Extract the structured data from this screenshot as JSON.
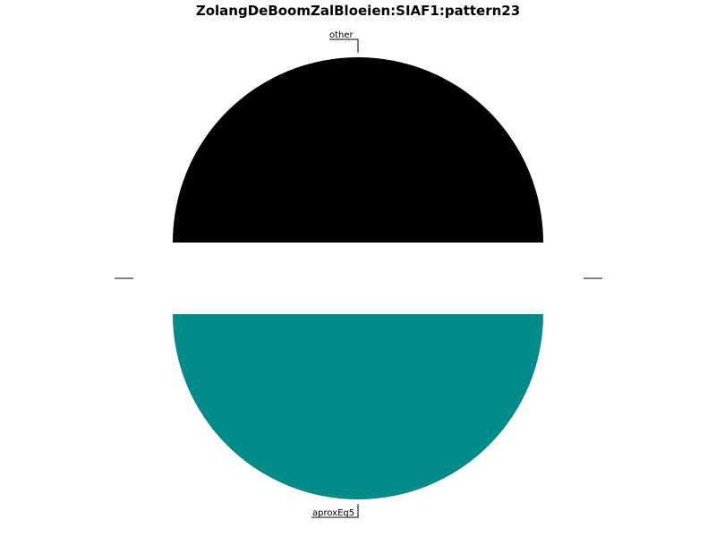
{
  "chart_data": {
    "type": "pie",
    "title": "ZolangDeBoomZalBloeien:SIAF1:pattern23",
    "slices": [
      {
        "label": "other",
        "value": 50,
        "color": "#000000"
      },
      {
        "label": "aproxEq5",
        "value": 50,
        "color": "#008B8B"
      }
    ],
    "legend": "none",
    "labels_outside_with_leaders": true
  }
}
